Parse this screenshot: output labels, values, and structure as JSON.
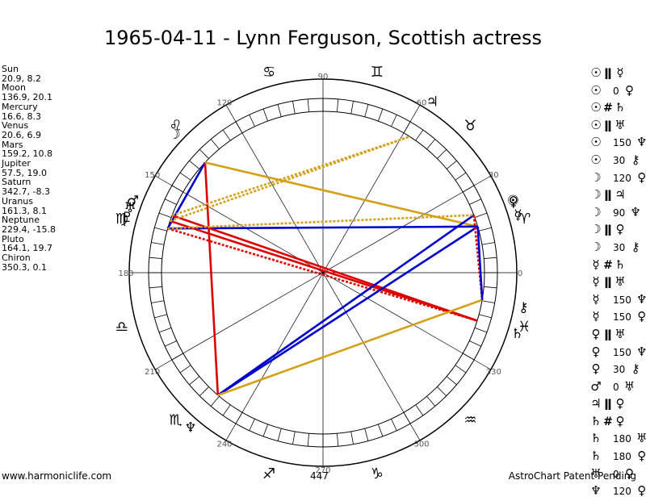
{
  "title": "1965-04-11 - Lynn Ferguson, Scottish actress",
  "planets": [
    {
      "name": "Sun",
      "coords": "20.9, 8.2",
      "lon": 20.9,
      "glyph": "☉",
      "color": "#000000"
    },
    {
      "name": "Moon",
      "coords": "136.9, 20.1",
      "lon": 136.9,
      "glyph": "☽",
      "color": "#000000"
    },
    {
      "name": "Mercury",
      "coords": "16.6, 8.3",
      "lon": 16.6,
      "glyph": "☿",
      "color": "#000000"
    },
    {
      "name": "Venus",
      "coords": "20.6, 6.9",
      "lon": 20.6,
      "glyph": "♀",
      "color": "#000000"
    },
    {
      "name": "Mars",
      "coords": "159.2, 10.8",
      "lon": 159.2,
      "glyph": "♂",
      "color": "#000000"
    },
    {
      "name": "Jupiter",
      "coords": "57.5, 19.0",
      "lon": 57.5,
      "glyph": "♃",
      "color": "#000000"
    },
    {
      "name": "Saturn",
      "coords": "342.7, -8.3",
      "lon": 342.7,
      "glyph": "♄",
      "color": "#000000"
    },
    {
      "name": "Uranus",
      "coords": "161.3, 8.1",
      "lon": 161.3,
      "glyph": "♅",
      "color": "#000000"
    },
    {
      "name": "Neptune",
      "coords": "229.4, -15.8",
      "lon": 229.4,
      "glyph": "♆",
      "color": "#000000"
    },
    {
      "name": "Pluto",
      "coords": "164.1, 19.7",
      "lon": 164.1,
      "glyph": "♇",
      "color": "#000000"
    },
    {
      "name": "Chiron",
      "coords": "350.3, 0.1",
      "lon": 350.3,
      "glyph": "⚷",
      "color": "#000000"
    }
  ],
  "aspects": [
    {
      "p1": "☉",
      "sym": "ǁ",
      "value": "",
      "p2": "☿"
    },
    {
      "p1": "☉",
      "sym": "",
      "value": "0",
      "p2": "♀"
    },
    {
      "p1": "☉",
      "sym": "#",
      "value": "",
      "p2": "♄"
    },
    {
      "p1": "☉",
      "sym": "ǁ",
      "value": "",
      "p2": "♅"
    },
    {
      "p1": "☉",
      "sym": "",
      "value": "150",
      "p2": "♆"
    },
    {
      "p1": "☉",
      "sym": "",
      "value": "30",
      "p2": "⚷"
    },
    {
      "p1": "☽",
      "sym": "",
      "value": "120",
      "p2": "♀"
    },
    {
      "p1": "☽",
      "sym": "ǁ",
      "value": "",
      "p2": "♃"
    },
    {
      "p1": "☽",
      "sym": "",
      "value": "90",
      "p2": "♆"
    },
    {
      "p1": "☽",
      "sym": "ǁ",
      "value": "",
      "p2": "♀"
    },
    {
      "p1": "☽",
      "sym": "",
      "value": "30",
      "p2": "⚷"
    },
    {
      "p1": "☿",
      "sym": "#",
      "value": "",
      "p2": "♄"
    },
    {
      "p1": "☿",
      "sym": "ǁ",
      "value": "",
      "p2": "♅"
    },
    {
      "p1": "☿",
      "sym": "",
      "value": "150",
      "p2": "♆"
    },
    {
      "p1": "☿",
      "sym": "",
      "value": "150",
      "p2": "♀"
    },
    {
      "p1": "♀",
      "sym": "ǁ",
      "value": "",
      "p2": "♅"
    },
    {
      "p1": "♀",
      "sym": "",
      "value": "150",
      "p2": "♆"
    },
    {
      "p1": "♀",
      "sym": "",
      "value": "30",
      "p2": "⚷"
    },
    {
      "p1": "♂",
      "sym": "",
      "value": "0",
      "p2": "♅"
    },
    {
      "p1": "♃",
      "sym": "ǁ",
      "value": "",
      "p2": "♀"
    },
    {
      "p1": "♄",
      "sym": "#",
      "value": "",
      "p2": "♀"
    },
    {
      "p1": "♄",
      "sym": "",
      "value": "180",
      "p2": "♅"
    },
    {
      "p1": "♄",
      "sym": "",
      "value": "180",
      "p2": "♀"
    },
    {
      "p1": "♅",
      "sym": "",
      "value": "0",
      "p2": "♀"
    },
    {
      "p1": "♆",
      "sym": "",
      "value": "120",
      "p2": "♀"
    }
  ],
  "degree_labels": [
    "0",
    "30",
    "60",
    "90",
    "120",
    "150",
    "180",
    "210",
    "240",
    "270",
    "300",
    "330"
  ],
  "zodiac": [
    {
      "glyph": "♈",
      "lon": 15
    },
    {
      "glyph": "♉",
      "lon": 45
    },
    {
      "glyph": "♊",
      "lon": 75
    },
    {
      "glyph": "♋",
      "lon": 105
    },
    {
      "glyph": "♌",
      "lon": 135
    },
    {
      "glyph": "♍",
      "lon": 165
    },
    {
      "glyph": "♎",
      "lon": 195
    },
    {
      "glyph": "♏",
      "lon": 225
    },
    {
      "glyph": "♐",
      "lon": 255
    },
    {
      "glyph": "♑",
      "lon": 285
    },
    {
      "glyph": "♒",
      "lon": 315
    },
    {
      "glyph": "♓",
      "lon": 345
    }
  ],
  "aspect_lines": [
    {
      "a": "Moon",
      "b": "Pluto",
      "color": "#0000cc",
      "style": "solid"
    },
    {
      "a": "Moon",
      "b": "Neptune",
      "color": "#dd0000",
      "style": "solid"
    },
    {
      "a": "Moon",
      "b": "Mercury",
      "color": "#d4a017",
      "style": "solid"
    },
    {
      "a": "Pluto",
      "b": "Mercury",
      "color": "#0000cc",
      "style": "solid"
    },
    {
      "a": "Mars",
      "b": "Saturn",
      "color": "#dd0000",
      "style": "solid"
    },
    {
      "a": "Uranus",
      "b": "Saturn",
      "color": "#dd0000",
      "style": "solid"
    },
    {
      "a": "Pluto",
      "b": "Saturn",
      "color": "#dd0000",
      "style": "dotted"
    },
    {
      "a": "Neptune",
      "b": "Sun",
      "color": "#0000cc",
      "style": "solid"
    },
    {
      "a": "Neptune",
      "b": "Mercury",
      "color": "#0000cc",
      "style": "solid"
    },
    {
      "a": "Neptune",
      "b": "Chiron",
      "color": "#d4a017",
      "style": "solid"
    },
    {
      "a": "Uranus",
      "b": "Jupiter",
      "color": "#d4a017",
      "style": "dotted"
    },
    {
      "a": "Pluto",
      "b": "Sun",
      "color": "#d4a017",
      "style": "dotted"
    },
    {
      "a": "Mars",
      "b": "Jupiter",
      "color": "#d4a017",
      "style": "dotted"
    },
    {
      "a": "Sun",
      "b": "Chiron",
      "color": "#dd0000",
      "style": "dotted"
    },
    {
      "a": "Mercury",
      "b": "Chiron",
      "color": "#0000cc",
      "style": "solid"
    }
  ],
  "footer": {
    "left": "www.harmoniclife.com",
    "middle": "447",
    "right": "AstroChart Patent Pending"
  }
}
